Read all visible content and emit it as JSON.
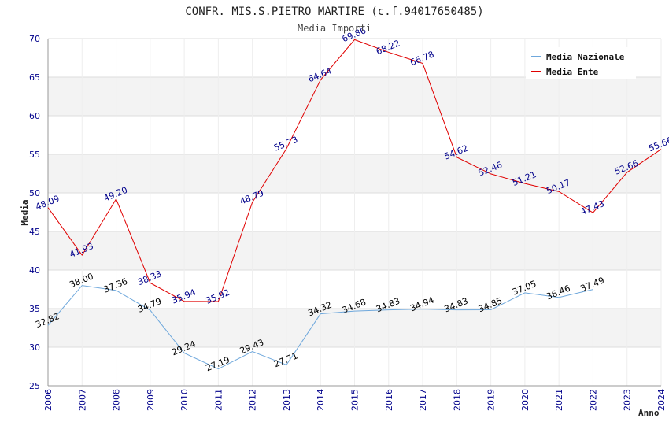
{
  "chart_data": {
    "type": "line",
    "title": "CONFR. MIS.S.PIETRO MARTIRE (c.f.94017650485)",
    "subtitle": "Media Importi",
    "ylabel": "Media",
    "xlabel": "Anno",
    "ylim": [
      25,
      70
    ],
    "yticks": [
      25,
      30,
      35,
      40,
      45,
      50,
      55,
      60,
      65,
      70
    ],
    "x": [
      "2006",
      "2007",
      "2008",
      "2009",
      "2010",
      "2011",
      "2012",
      "2013",
      "2014",
      "2015",
      "2016",
      "2017",
      "2018",
      "2019",
      "2020",
      "2021",
      "2022",
      "2023",
      "2024"
    ],
    "grid": "horizontal bands",
    "legend_position": "top-right",
    "series": [
      {
        "name": "Media Nazionale",
        "color": "#6fa8dc",
        "label_color": "#000000",
        "values": [
          32.82,
          38.0,
          37.36,
          34.79,
          29.24,
          27.19,
          29.43,
          27.71,
          34.32,
          34.68,
          34.83,
          34.94,
          34.83,
          34.85,
          37.05,
          36.46,
          37.49,
          null,
          null
        ],
        "labels": [
          "32.82",
          "38.00",
          "37.36",
          "34.79",
          "29.24",
          "27.19",
          "29.43",
          "27.71",
          "34.32",
          "34.68",
          "34.83",
          "34.94",
          "34.83",
          "34.85",
          "37.05",
          "36.46",
          "37.49",
          "",
          ""
        ]
      },
      {
        "name": "Media Ente",
        "color": "#e00000",
        "label_color": "#00008b",
        "values": [
          48.09,
          41.93,
          49.2,
          38.33,
          35.94,
          35.92,
          48.79,
          55.73,
          64.64,
          69.86,
          68.22,
          66.78,
          54.62,
          52.46,
          51.21,
          50.17,
          47.43,
          52.66,
          55.66
        ],
        "labels": [
          "48.09",
          "41.93",
          "49.20",
          "38.33",
          "35.94",
          "35.92",
          "48.79",
          "55.73",
          "64.64",
          "69.86",
          "68.22",
          "66.78",
          "54.62",
          "52.46",
          "51.21",
          "50.17",
          "47.43",
          "52.66",
          "55.66"
        ]
      }
    ]
  }
}
